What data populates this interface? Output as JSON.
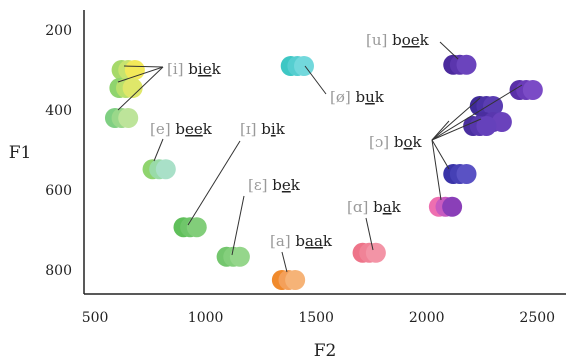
{
  "chart_data": {
    "type": "scatter",
    "xlabel": "F2",
    "ylabel": "F1",
    "xlim": [
      450,
      2630
    ],
    "ylim": [
      150,
      860
    ],
    "y_inverted": true,
    "xticks": [
      500,
      1000,
      1500,
      2000,
      2500
    ],
    "yticks": [
      200,
      400,
      600,
      800
    ],
    "grid": false,
    "vowels": [
      {
        "ipa": "[i]",
        "word": {
          "pre": "b",
          "mark": "ie",
          "post": "k"
        },
        "color": "#cfe27a",
        "points": [
          {
            "f2": 620,
            "f1": 300,
            "color": "#a6d96a"
          },
          {
            "f2": 650,
            "f1": 300,
            "color": "#c7e36f"
          },
          {
            "f2": 680,
            "f1": 300,
            "color": "#f3e95a"
          },
          {
            "f2": 610,
            "f1": 345,
            "color": "#8fd46e"
          },
          {
            "f2": 640,
            "f1": 345,
            "color": "#b9e06c"
          },
          {
            "f2": 670,
            "f1": 345,
            "color": "#dfe76a"
          },
          {
            "f2": 590,
            "f1": 420,
            "color": "#7fcf82"
          },
          {
            "f2": 620,
            "f1": 420,
            "color": "#9ad88a"
          },
          {
            "f2": 650,
            "f1": 420,
            "color": "#bde49a"
          }
        ]
      },
      {
        "ipa": "[e]",
        "word": {
          "pre": "b",
          "mark": "ee",
          "post": "k"
        },
        "color": "#8fd89a",
        "points": [
          {
            "f2": 760,
            "f1": 548,
            "color": "#8fd46e"
          },
          {
            "f2": 790,
            "f1": 548,
            "color": "#99dba8"
          },
          {
            "f2": 820,
            "f1": 548,
            "color": "#a9e0c8"
          }
        ]
      },
      {
        "ipa": "[ɪ]",
        "word": {
          "pre": "b",
          "mark": "i",
          "post": "k"
        },
        "color": "#6cc16c",
        "points": [
          {
            "f2": 900,
            "f1": 693,
            "color": "#5fbf5a"
          },
          {
            "f2": 930,
            "f1": 693,
            "color": "#6fc66a"
          },
          {
            "f2": 960,
            "f1": 693,
            "color": "#82ce7a"
          }
        ]
      },
      {
        "ipa": "[ɛ]",
        "word": {
          "pre": "b",
          "mark": "e",
          "post": "k"
        },
        "color": "#7fcb76",
        "points": [
          {
            "f2": 1095,
            "f1": 767,
            "color": "#74c66e"
          },
          {
            "f2": 1125,
            "f1": 767,
            "color": "#84cf7c"
          },
          {
            "f2": 1155,
            "f1": 767,
            "color": "#95d68b"
          }
        ]
      },
      {
        "ipa": "[a]",
        "word": {
          "pre": "b",
          "mark": "aa",
          "post": "k"
        },
        "color": "#f59a5a",
        "points": [
          {
            "f2": 1345,
            "f1": 825,
            "color": "#f08a2c"
          },
          {
            "f2": 1375,
            "f1": 825,
            "color": "#f4a05a"
          },
          {
            "f2": 1405,
            "f1": 825,
            "color": "#f6b377"
          }
        ]
      },
      {
        "ipa": "[ø]",
        "word": {
          "pre": "b",
          "mark": "u",
          "post": "k"
        },
        "color": "#5fd3d0",
        "points": [
          {
            "f2": 1385,
            "f1": 290,
            "color": "#3ec7c4"
          },
          {
            "f2": 1415,
            "f1": 290,
            "color": "#55ced0"
          },
          {
            "f2": 1445,
            "f1": 290,
            "color": "#72d8dc"
          }
        ]
      },
      {
        "ipa": "[ɑ]",
        "word": {
          "pre": "b",
          "mark": "a",
          "post": "k"
        },
        "color": "#f07c94",
        "points": [
          {
            "f2": 1710,
            "f1": 757,
            "color": "#ee7489"
          },
          {
            "f2": 1740,
            "f1": 757,
            "color": "#f08397"
          },
          {
            "f2": 1770,
            "f1": 757,
            "color": "#f394a6"
          }
        ]
      },
      {
        "ipa": "[u]",
        "word": {
          "pre": "b",
          "mark": "oe",
          "post": "k"
        },
        "color": "#5a2fa8",
        "points": [
          {
            "f2": 2120,
            "f1": 287,
            "color": "#4b2a9d"
          },
          {
            "f2": 2150,
            "f1": 287,
            "color": "#5b35ad"
          },
          {
            "f2": 2180,
            "f1": 287,
            "color": "#6b44bd"
          }
        ]
      },
      {
        "ipa": "[ɔ]",
        "word": {
          "pre": "b",
          "mark": "o",
          "post": "k"
        },
        "color": "#5b3bb0",
        "points": [
          {
            "f2": 2420,
            "f1": 350,
            "color": "#5a2fa8"
          },
          {
            "f2": 2450,
            "f1": 350,
            "color": "#6a3bb8"
          },
          {
            "f2": 2480,
            "f1": 350,
            "color": "#7b4bc6"
          },
          {
            "f2": 2240,
            "f1": 390,
            "color": "#3f2a98"
          },
          {
            "f2": 2270,
            "f1": 390,
            "color": "#4b32a5"
          },
          {
            "f2": 2300,
            "f1": 390,
            "color": "#5a3db2"
          },
          {
            "f2": 2260,
            "f1": 430,
            "color": "#4a2e9f"
          },
          {
            "f2": 2300,
            "f1": 430,
            "color": "#5937ae"
          },
          {
            "f2": 2340,
            "f1": 430,
            "color": "#6a42bc"
          },
          {
            "f2": 2210,
            "f1": 440,
            "color": "#4a2fa0"
          },
          {
            "f2": 2240,
            "f1": 440,
            "color": "#5737ad"
          },
          {
            "f2": 2270,
            "f1": 440,
            "color": "#6541bb"
          },
          {
            "f2": 2120,
            "f1": 560,
            "color": "#3a34a8"
          },
          {
            "f2": 2150,
            "f1": 560,
            "color": "#4640b5"
          },
          {
            "f2": 2180,
            "f1": 560,
            "color": "#5a52c4"
          },
          {
            "f2": 2055,
            "f1": 642,
            "color": "#ee6fb0"
          },
          {
            "f2": 2085,
            "f1": 642,
            "color": "#c85bc0"
          },
          {
            "f2": 2115,
            "f1": 642,
            "color": "#8a3fb8"
          }
        ]
      }
    ]
  }
}
